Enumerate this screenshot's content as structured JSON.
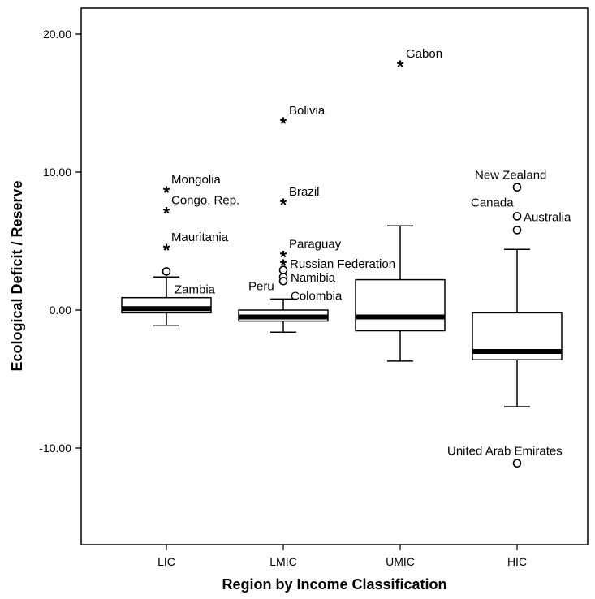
{
  "chart_data": {
    "type": "boxplot",
    "xlabel": "Region by Income Classification",
    "ylabel": "Ecological Deficit / Reserve",
    "ylim": [
      -17,
      22
    ],
    "yticks": [
      -10,
      0,
      10,
      20
    ],
    "ytick_labels": [
      "-10.00",
      "0.00",
      "10.00",
      "20.00"
    ],
    "grid": false,
    "categories": [
      "LIC",
      "LMIC",
      "UMIC",
      "HIC"
    ],
    "boxes": [
      {
        "category": "LIC",
        "whisker_low": -1.1,
        "q1": -0.2,
        "median": 0.1,
        "q3": 0.9,
        "whisker_high": 2.4
      },
      {
        "category": "LMIC",
        "whisker_low": -1.6,
        "q1": -0.8,
        "median": -0.5,
        "q3": 0.0,
        "whisker_high": 0.8
      },
      {
        "category": "UMIC",
        "whisker_low": -3.7,
        "q1": -1.5,
        "median": -0.5,
        "q3": 2.2,
        "whisker_high": 6.1
      },
      {
        "category": "HIC",
        "whisker_low": -7.0,
        "q1": -3.6,
        "median": -3.0,
        "q3": -0.2,
        "whisker_high": 4.4
      }
    ],
    "points": [
      {
        "category": "LIC",
        "y": 8.6,
        "marker": "star",
        "label": "Mongolia",
        "label_dx": 6,
        "label_dy": -10
      },
      {
        "category": "LIC",
        "y": 7.1,
        "marker": "star",
        "label": "Congo, Rep.",
        "label_dx": 6,
        "label_dy": -10
      },
      {
        "category": "LIC",
        "y": 4.4,
        "marker": "star",
        "label": "Mauritania",
        "label_dx": 6,
        "label_dy": -10
      },
      {
        "category": "LIC",
        "y": 2.8,
        "marker": "circle",
        "label": "Zambia",
        "label_dx": 10,
        "label_dy": 27
      },
      {
        "category": "LMIC",
        "y": 13.6,
        "marker": "star",
        "label": "Bolivia",
        "label_dx": 7,
        "label_dy": -10
      },
      {
        "category": "LMIC",
        "y": 7.7,
        "marker": "star",
        "label": "Brazil",
        "label_dx": 7,
        "label_dy": -10
      },
      {
        "category": "LMIC",
        "y": 3.9,
        "marker": "star",
        "label": "Paraguay",
        "label_dx": 7,
        "label_dy": -10
      },
      {
        "category": "LMIC",
        "y": 3.3,
        "marker": "star",
        "label": "Russian Federation",
        "label_dx": 8,
        "label_dy": 4
      },
      {
        "category": "LMIC",
        "y": 2.9,
        "marker": "circle",
        "label": "Peru",
        "label_dx": -43,
        "label_dy": 25
      },
      {
        "category": "LMIC",
        "y": 2.4,
        "marker": "circle",
        "label": "Namibia",
        "label_dx": 9,
        "label_dy": 6
      },
      {
        "category": "LMIC",
        "y": 2.1,
        "marker": "circle",
        "label": "Colombia",
        "label_dx": 9,
        "label_dy": 23
      },
      {
        "category": "UMIC",
        "y": 17.7,
        "marker": "star",
        "label": "Gabon",
        "label_dx": 7,
        "label_dy": -10
      },
      {
        "category": "HIC",
        "y": 8.9,
        "marker": "circle",
        "label": "New Zealand",
        "label_dx": -52,
        "label_dy": -10
      },
      {
        "category": "HIC",
        "y": 6.8,
        "marker": "circle",
        "label": "Canada",
        "label_dx": -57,
        "label_dy": -12
      },
      {
        "category": "HIC",
        "y": 5.8,
        "marker": "circle",
        "label": "Australia",
        "label_dx": 8,
        "label_dy": -11
      },
      {
        "category": "HIC",
        "y": -11.1,
        "marker": "circle",
        "label": "United Arab Emirates",
        "label_dx": -86,
        "label_dy": -10
      }
    ]
  }
}
